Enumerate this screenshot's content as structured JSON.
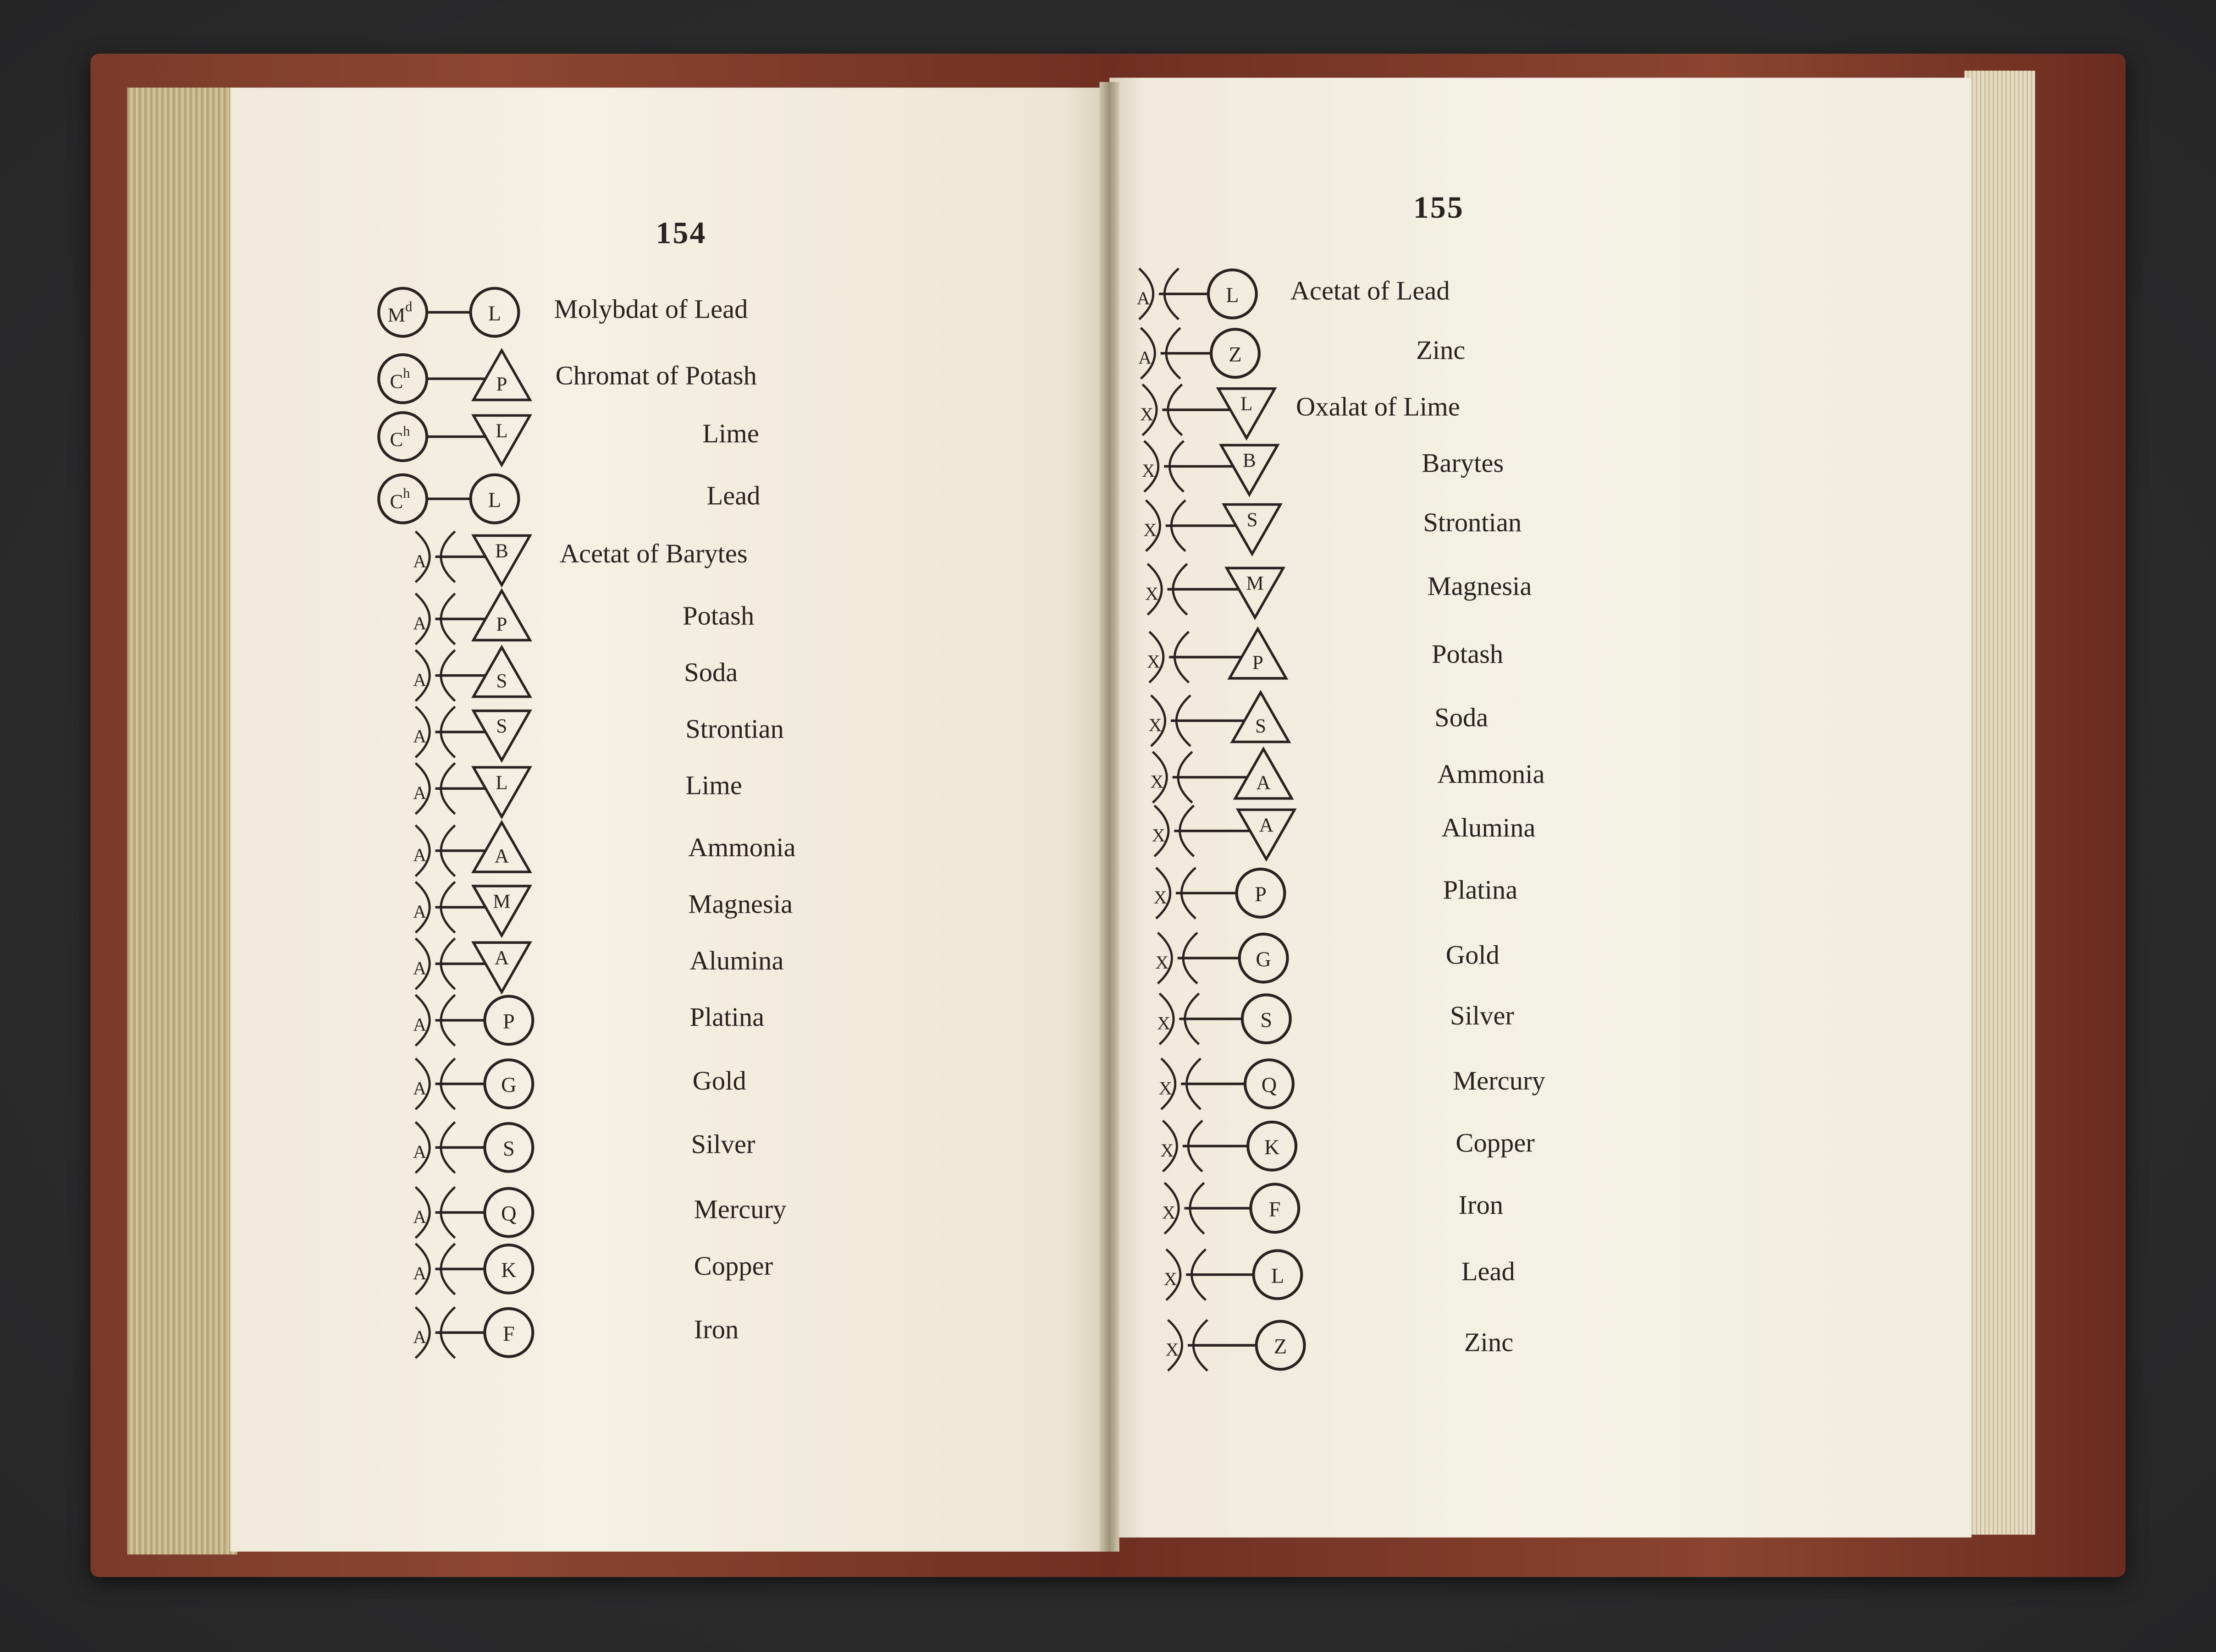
{
  "ink_color": "#2a2220",
  "paper_color": "#f3efe2",
  "cover_color": "#8c4632",
  "left_page": {
    "page_number": "154",
    "entries": [
      {
        "label": "Molybdat of Lead",
        "left": {
          "type": "circle",
          "letter": "Md"
        },
        "right": {
          "type": "circle",
          "letter": "L"
        }
      },
      {
        "label": "Chromat of Potash",
        "left": {
          "type": "circle",
          "letter": "Ch"
        },
        "right": {
          "type": "triangle-up",
          "letter": "P"
        }
      },
      {
        "label": "Lime",
        "left": {
          "type": "circle",
          "letter": "Ch"
        },
        "right": {
          "type": "triangle-down",
          "letter": "L"
        }
      },
      {
        "label": "Lead",
        "left": {
          "type": "circle",
          "letter": "Ch"
        },
        "right": {
          "type": "circle",
          "letter": "L"
        }
      },
      {
        "label": "Acetat of Barytes",
        "left": {
          "type": "acid",
          "letter": "A"
        },
        "right": {
          "type": "triangle-down",
          "letter": "B"
        }
      },
      {
        "label": "Potash",
        "left": {
          "type": "acid",
          "letter": "A"
        },
        "right": {
          "type": "triangle-up",
          "letter": "P"
        }
      },
      {
        "label": "Soda",
        "left": {
          "type": "acid",
          "letter": "A"
        },
        "right": {
          "type": "triangle-up",
          "letter": "S"
        }
      },
      {
        "label": "Strontian",
        "left": {
          "type": "acid",
          "letter": "A"
        },
        "right": {
          "type": "triangle-down",
          "letter": "S"
        }
      },
      {
        "label": "Lime",
        "left": {
          "type": "acid",
          "letter": "A"
        },
        "right": {
          "type": "triangle-down",
          "letter": "L"
        }
      },
      {
        "label": "Ammonia",
        "left": {
          "type": "acid",
          "letter": "A"
        },
        "right": {
          "type": "triangle-up",
          "letter": "A"
        }
      },
      {
        "label": "Magnesia",
        "left": {
          "type": "acid",
          "letter": "A"
        },
        "right": {
          "type": "triangle-down",
          "letter": "M"
        }
      },
      {
        "label": "Alumina",
        "left": {
          "type": "acid",
          "letter": "A"
        },
        "right": {
          "type": "triangle-down",
          "letter": "A"
        }
      },
      {
        "label": "Platina",
        "left": {
          "type": "acid",
          "letter": "A"
        },
        "right": {
          "type": "circle",
          "letter": "P"
        }
      },
      {
        "label": "Gold",
        "left": {
          "type": "acid",
          "letter": "A"
        },
        "right": {
          "type": "circle",
          "letter": "G"
        }
      },
      {
        "label": "Silver",
        "left": {
          "type": "acid",
          "letter": "A"
        },
        "right": {
          "type": "circle",
          "letter": "S"
        }
      },
      {
        "label": "Mercury",
        "left": {
          "type": "acid",
          "letter": "A"
        },
        "right": {
          "type": "circle",
          "letter": "Q"
        }
      },
      {
        "label": "Copper",
        "left": {
          "type": "acid",
          "letter": "A"
        },
        "right": {
          "type": "circle",
          "letter": "K"
        }
      },
      {
        "label": "Iron",
        "left": {
          "type": "acid",
          "letter": "A"
        },
        "right": {
          "type": "circle",
          "letter": "F"
        }
      }
    ]
  },
  "right_page": {
    "page_number": "155",
    "entries": [
      {
        "label": "Acetat of Lead",
        "left": {
          "type": "acid",
          "letter": "A"
        },
        "right": {
          "type": "circle",
          "letter": "L"
        }
      },
      {
        "label": "Zinc",
        "left": {
          "type": "acid",
          "letter": "A"
        },
        "right": {
          "type": "circle",
          "letter": "Z"
        }
      },
      {
        "label": "Oxalat of Lime",
        "left": {
          "type": "acid",
          "letter": "X"
        },
        "right": {
          "type": "triangle-down",
          "letter": "L"
        }
      },
      {
        "label": "Barytes",
        "left": {
          "type": "acid",
          "letter": "X"
        },
        "right": {
          "type": "triangle-down",
          "letter": "B"
        }
      },
      {
        "label": "Strontian",
        "left": {
          "type": "acid",
          "letter": "X"
        },
        "right": {
          "type": "triangle-down",
          "letter": "S"
        }
      },
      {
        "label": "Magnesia",
        "left": {
          "type": "acid",
          "letter": "X"
        },
        "right": {
          "type": "triangle-down",
          "letter": "M"
        }
      },
      {
        "label": "Potash",
        "left": {
          "type": "acid",
          "letter": "X"
        },
        "right": {
          "type": "triangle-up",
          "letter": "P"
        }
      },
      {
        "label": "Soda",
        "left": {
          "type": "acid",
          "letter": "X"
        },
        "right": {
          "type": "triangle-up",
          "letter": "S"
        }
      },
      {
        "label": "Ammonia",
        "left": {
          "type": "acid",
          "letter": "X"
        },
        "right": {
          "type": "triangle-up",
          "letter": "A"
        }
      },
      {
        "label": "Alumina",
        "left": {
          "type": "acid",
          "letter": "X"
        },
        "right": {
          "type": "triangle-down",
          "letter": "A"
        }
      },
      {
        "label": "Platina",
        "left": {
          "type": "acid",
          "letter": "X"
        },
        "right": {
          "type": "circle",
          "letter": "P"
        }
      },
      {
        "label": "Gold",
        "left": {
          "type": "acid",
          "letter": "X"
        },
        "right": {
          "type": "circle",
          "letter": "G"
        }
      },
      {
        "label": "Silver",
        "left": {
          "type": "acid",
          "letter": "X"
        },
        "right": {
          "type": "circle",
          "letter": "S"
        }
      },
      {
        "label": "Mercury",
        "left": {
          "type": "acid",
          "letter": "X"
        },
        "right": {
          "type": "circle",
          "letter": "Q"
        }
      },
      {
        "label": "Copper",
        "left": {
          "type": "acid",
          "letter": "X"
        },
        "right": {
          "type": "circle",
          "letter": "K"
        }
      },
      {
        "label": "Iron",
        "left": {
          "type": "acid",
          "letter": "X"
        },
        "right": {
          "type": "circle",
          "letter": "F"
        }
      },
      {
        "label": "Lead",
        "left": {
          "type": "acid",
          "letter": "X"
        },
        "right": {
          "type": "circle",
          "letter": "L"
        }
      },
      {
        "label": "Zinc",
        "left": {
          "type": "acid",
          "letter": "X"
        },
        "right": {
          "type": "circle",
          "letter": "Z"
        }
      }
    ]
  }
}
